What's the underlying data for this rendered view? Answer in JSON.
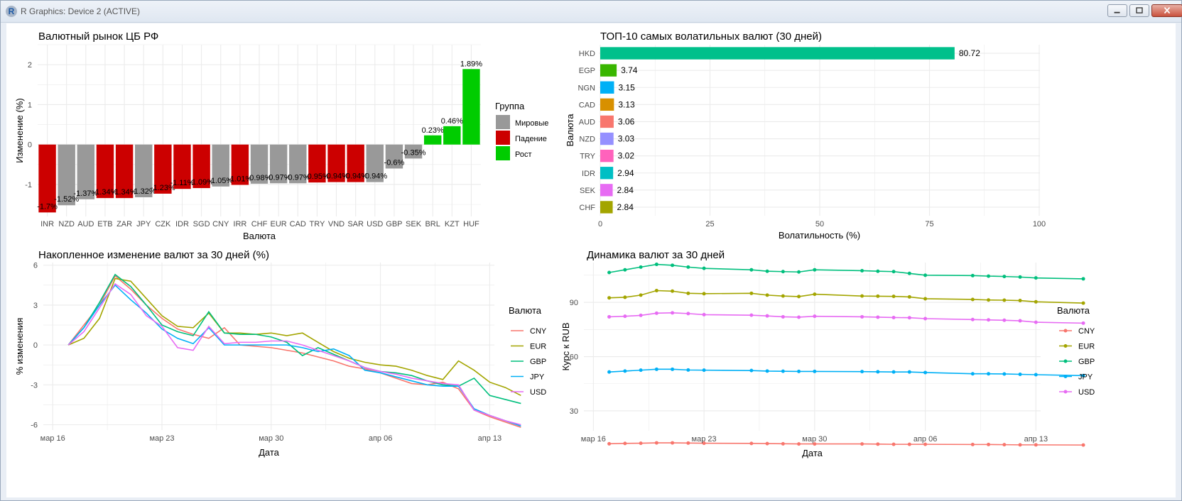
{
  "window": {
    "title": "R Graphics: Device 2 (ACTIVE)",
    "app_icon": "R",
    "buttons": [
      "minimize-icon",
      "maximize-icon",
      "close-icon"
    ]
  },
  "chart_data": [
    {
      "type": "bar",
      "title": "Валютный рынок ЦБ РФ",
      "xlabel": "Валюта",
      "ylabel": "Изменение (%)",
      "ylim": [
        -1.8,
        2.5
      ],
      "yticks": [
        -1,
        0,
        1,
        2
      ],
      "grid": true,
      "legend": {
        "title": "Группа",
        "placement": "right",
        "entries": [
          {
            "name": "Мировые",
            "color": "#999999"
          },
          {
            "name": "Падение",
            "color": "#cc0000"
          },
          {
            "name": "Рост",
            "color": "#00cc00"
          }
        ]
      },
      "categories": [
        "INR",
        "NZD",
        "AUD",
        "ETB",
        "ZAR",
        "JPY",
        "CZK",
        "IDR",
        "SGD",
        "CNY",
        "IRR",
        "CHF",
        "EUR",
        "CAD",
        "TRY",
        "VND",
        "SAR",
        "USD",
        "GBP",
        "SEK",
        "BRL",
        "KZT",
        "HUF"
      ],
      "values": [
        -1.7,
        -1.52,
        -1.37,
        -1.34,
        -1.34,
        -1.32,
        -1.23,
        -1.11,
        -1.09,
        -1.05,
        -1.01,
        -0.98,
        -0.97,
        -0.97,
        -0.95,
        -0.94,
        -0.94,
        -0.94,
        -0.6,
        -0.35,
        0.23,
        0.46,
        1.89
      ],
      "labels": [
        "-1.7%",
        "-1.52%",
        "-1.37%",
        "-1.34%",
        "-1.34%",
        "-1.32%",
        "-1.23%",
        "-1.11%",
        "-1.09%",
        "-1.05%",
        "-1.01%",
        "-0.98%",
        "-0.97%",
        "-0.97%",
        "-0.95%",
        "-0.94%",
        "-0.94%",
        "-0.94%",
        "-0.6%",
        "-0.35%",
        "0.23%",
        "0.46%",
        "1.89%"
      ],
      "groups": [
        "Падение",
        "Мировые",
        "Мировые",
        "Падение",
        "Падение",
        "Мировые",
        "Падение",
        "Падение",
        "Падение",
        "Мировые",
        "Падение",
        "Мировые",
        "Мировые",
        "Мировые",
        "Падение",
        "Падение",
        "Падение",
        "Мировые",
        "Мировые",
        "Мировые",
        "Рост",
        "Рост",
        "Рост"
      ]
    },
    {
      "type": "bar",
      "orientation": "horizontal",
      "title": "ТОП-10 самых волатильных валют (30 дней)",
      "xlabel": "Волатильность (%)",
      "ylabel": "Валюта",
      "xlim": [
        0,
        100
      ],
      "xticks": [
        0,
        25,
        50,
        75,
        100
      ],
      "grid": true,
      "categories": [
        "HKD",
        "EGP",
        "NGN",
        "CAD",
        "AUD",
        "NZD",
        "TRY",
        "IDR",
        "SEK",
        "CHF"
      ],
      "values": [
        80.72,
        3.74,
        3.15,
        3.13,
        3.06,
        3.03,
        3.02,
        2.94,
        2.84,
        2.84
      ],
      "labels": [
        "80.72",
        "3.74",
        "3.15",
        "3.13",
        "3.06",
        "3.03",
        "3.02",
        "2.94",
        "2.84",
        "2.84"
      ],
      "colors": [
        "#00c08b",
        "#39b600",
        "#00b0f6",
        "#d89000",
        "#f8766d",
        "#9590ff",
        "#ff62bc",
        "#00bfc4",
        "#e76bf3",
        "#a3a500"
      ]
    },
    {
      "type": "line",
      "title": "Накопленное изменение валют за 30 дней (%)",
      "xlabel": "Дата",
      "ylabel": "% изменения",
      "ylim": [
        -6.4,
        6.2
      ],
      "yticks": [
        -6,
        -3,
        0,
        3,
        6
      ],
      "xlim": [
        -0.6,
        28.3
      ],
      "xticks": [
        {
          "value": 0,
          "label": "мар 16"
        },
        {
          "value": 7,
          "label": "мар 23"
        },
        {
          "value": 14,
          "label": "мар 30"
        },
        {
          "value": 21,
          "label": "апр 06"
        },
        {
          "value": 28,
          "label": "апр 13"
        }
      ],
      "grid": true,
      "legend": {
        "title": "Валюта",
        "placement": "right"
      },
      "series": [
        {
          "name": "CNY",
          "color": "#f8766d",
          "x": [
            1,
            2,
            3,
            4,
            5,
            6,
            7,
            8,
            9,
            10,
            11,
            12,
            13,
            14,
            15,
            16,
            17,
            18,
            19,
            20,
            21,
            22,
            23,
            24,
            25,
            26,
            27,
            28,
            29,
            30
          ],
          "y": [
            0,
            1.5,
            3,
            5.2,
            4.2,
            3,
            2,
            1.2,
            0.8,
            0.5,
            1.3,
            0,
            -0.1,
            -0.2,
            -0.4,
            -0.6,
            -0.9,
            -1.2,
            -1.6,
            -1.8,
            -2.1,
            -2.5,
            -2.9,
            -3,
            -2.8,
            -3.3,
            -4.9,
            -5.4,
            -5.8,
            -6.2
          ]
        },
        {
          "name": "EUR",
          "color": "#a3a500",
          "x": [
            1,
            2,
            3,
            4,
            5,
            6,
            7,
            8,
            9,
            10,
            11,
            12,
            13,
            14,
            15,
            16,
            17,
            18,
            19,
            20,
            21,
            22,
            23,
            24,
            25,
            26,
            27,
            28,
            29,
            30
          ],
          "y": [
            0,
            0.5,
            2,
            5,
            4.8,
            3.5,
            2.2,
            1.4,
            1.3,
            2.4,
            0.9,
            0.9,
            0.8,
            0.9,
            0.7,
            0.9,
            0.2,
            -0.5,
            -1,
            -1.3,
            -1.5,
            -1.6,
            -1.9,
            -2.3,
            -2.6,
            -1.2,
            -1.9,
            -2.8,
            -3.2,
            -3.8
          ]
        },
        {
          "name": "GBP",
          "color": "#00bf7d",
          "x": [
            1,
            2,
            3,
            4,
            5,
            6,
            7,
            8,
            9,
            10,
            11,
            12,
            13,
            14,
            15,
            16,
            17,
            18,
            19,
            20,
            21,
            22,
            23,
            24,
            25,
            26,
            27,
            28,
            29,
            30
          ],
          "y": [
            0,
            1.3,
            3.2,
            5.3,
            4.4,
            3,
            1.5,
            1,
            0.7,
            2.5,
            0.9,
            0.8,
            0.8,
            0.6,
            0.2,
            -0.8,
            -0.2,
            -0.7,
            -1.2,
            -1.7,
            -2,
            -2.1,
            -2.3,
            -2.7,
            -3,
            -3.1,
            -2.5,
            -3.8,
            -4.1,
            -4.4
          ]
        },
        {
          "name": "JPY",
          "color": "#00b0f6",
          "x": [
            1,
            2,
            3,
            4,
            5,
            6,
            7,
            8,
            9,
            10,
            11,
            12,
            13,
            14,
            15,
            16,
            17,
            18,
            19,
            20,
            21,
            22,
            23,
            24,
            25,
            26,
            27,
            28,
            29,
            30
          ],
          "y": [
            0,
            1.3,
            3,
            4.5,
            3.4,
            2.4,
            1.2,
            0.5,
            0.1,
            1.3,
            0,
            0,
            0,
            0,
            0,
            -0.2,
            -0.5,
            -0.3,
            -0.8,
            -1.9,
            -2.1,
            -2.4,
            -2.7,
            -3,
            -3.1,
            -3.1,
            -4.8,
            -5.3,
            -5.7,
            -6.1
          ]
        },
        {
          "name": "USD",
          "color": "#e76bf3",
          "x": [
            1,
            2,
            3,
            4,
            5,
            6,
            7,
            8,
            9,
            10,
            11,
            12,
            13,
            14,
            15,
            16,
            17,
            18,
            19,
            20,
            21,
            22,
            23,
            24,
            25,
            26,
            27,
            28,
            29,
            30
          ],
          "y": [
            0,
            1,
            2.8,
            4.6,
            3.8,
            2.2,
            1.4,
            -0.2,
            -0.4,
            1.4,
            0.1,
            0.2,
            0.2,
            0.3,
            0.3,
            0,
            -0.4,
            -0.8,
            -1.2,
            -1.7,
            -2,
            -2.2,
            -2.5,
            -2.7,
            -2.9,
            -3,
            -4.9,
            -5.3,
            -5.7,
            -6
          ]
        }
      ]
    },
    {
      "type": "line",
      "markers": true,
      "title": "Динамика валют за 30 дней",
      "xlabel": "Дата",
      "ylabel": "Курс к RUB",
      "ylim": [
        19,
        112
      ],
      "yticks": [
        30,
        60,
        90
      ],
      "xlim": [
        -0.6,
        28.3
      ],
      "xticks": [
        {
          "value": 0,
          "label": "мар 16"
        },
        {
          "value": 7,
          "label": "мар 23"
        },
        {
          "value": 14,
          "label": "мар 30"
        },
        {
          "value": 21,
          "label": "апр 06"
        },
        {
          "value": 28,
          "label": "апр 13"
        }
      ],
      "grid": true,
      "legend": {
        "title": "Валюта",
        "placement": "right"
      },
      "series": [
        {
          "name": "CNY",
          "color": "#f8766d",
          "x": [
            1,
            2,
            3,
            4,
            5,
            6,
            7,
            10,
            11,
            12,
            13,
            14,
            17,
            18,
            19,
            20,
            21,
            24,
            25,
            26,
            27,
            28,
            31
          ],
          "y": [
            11.8,
            12,
            12.1,
            12.3,
            12.3,
            12.2,
            12.1,
            12,
            11.9,
            11.8,
            11.7,
            11.7,
            11.7,
            11.6,
            11.5,
            11.5,
            11.5,
            11.4,
            11.4,
            11.3,
            11.2,
            11.2,
            11.1
          ]
        },
        {
          "name": "EUR",
          "color": "#a3a500",
          "x": [
            1,
            2,
            3,
            4,
            5,
            6,
            7,
            10,
            11,
            12,
            13,
            14,
            17,
            18,
            19,
            20,
            21,
            24,
            25,
            26,
            27,
            28,
            31
          ],
          "y": [
            92.5,
            92.8,
            94,
            96.5,
            96.2,
            95,
            94.8,
            95,
            94,
            93.5,
            93.2,
            94.5,
            93.5,
            93.4,
            93.3,
            93,
            92,
            91.6,
            91.3,
            91.2,
            91,
            90.3,
            89.6
          ]
        },
        {
          "name": "GBP",
          "color": "#00bf7d",
          "x": [
            1,
            2,
            3,
            4,
            5,
            6,
            7,
            10,
            11,
            12,
            13,
            14,
            17,
            18,
            19,
            20,
            21,
            24,
            25,
            26,
            27,
            28,
            31
          ],
          "y": [
            106.5,
            108,
            109.5,
            111,
            110.5,
            109.5,
            108.8,
            108,
            107.2,
            107,
            106.8,
            108,
            107.5,
            107.2,
            107,
            106,
            105,
            104.8,
            104.5,
            104.3,
            104,
            103.5,
            103
          ]
        },
        {
          "name": "JPY",
          "color": "#00b0f6",
          "x": [
            1,
            2,
            3,
            4,
            5,
            6,
            7,
            10,
            11,
            12,
            13,
            14,
            17,
            18,
            19,
            20,
            21,
            24,
            25,
            26,
            27,
            28,
            31
          ],
          "y": [
            51.5,
            52,
            52.5,
            53,
            53,
            52.6,
            52.5,
            52.3,
            52,
            51.9,
            51.8,
            51.8,
            51.7,
            51.6,
            51.5,
            51.5,
            51.2,
            50.5,
            50.5,
            50.4,
            50.2,
            50,
            49.5
          ]
        },
        {
          "name": "USD",
          "color": "#e76bf3",
          "x": [
            1,
            2,
            3,
            4,
            5,
            6,
            7,
            10,
            11,
            12,
            13,
            14,
            17,
            18,
            19,
            20,
            21,
            24,
            25,
            26,
            27,
            28,
            31
          ],
          "y": [
            82,
            82.3,
            82.8,
            84,
            84.2,
            83.8,
            83.2,
            82.9,
            82.5,
            82,
            81.8,
            82.3,
            82,
            81.8,
            81.6,
            81.5,
            81,
            80.5,
            80.3,
            80.1,
            79.8,
            79,
            78.5
          ]
        }
      ]
    }
  ]
}
